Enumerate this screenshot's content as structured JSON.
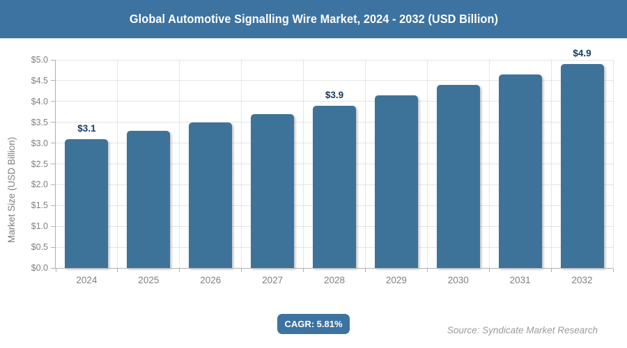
{
  "header": {
    "title": "Global Automotive Signalling Wire Market, 2024 - 2032 (USD Billion)"
  },
  "colors": {
    "accent_blue": "#3D73A0",
    "bar_blue": "#3D7299",
    "data_label_navy": "#17375E",
    "axis_text_gray": "#7F7F7F",
    "gridline_gray": "#E4E4E4",
    "axis_line_gray": "#AFAFAF",
    "source_text_gray": "#9B9B9B"
  },
  "chart_data": {
    "type": "bar",
    "title": "Global Automotive Signalling Wire Market, 2024 - 2032 (USD Billion)",
    "categories": [
      "2024",
      "2025",
      "2026",
      "2027",
      "2028",
      "2029",
      "2030",
      "2031",
      "2032"
    ],
    "values": [
      3.1,
      3.3,
      3.5,
      3.7,
      3.9,
      4.15,
      4.4,
      4.65,
      4.9
    ],
    "data_labels": [
      "$3.1",
      null,
      null,
      null,
      "$3.9",
      null,
      null,
      null,
      "$4.9"
    ],
    "xlabel": "",
    "ylabel": "Market Size (USD Billion)",
    "ylim": [
      0,
      5
    ],
    "ytick_step": 0.5,
    "ytick_labels": [
      "$0.0",
      "$0.5",
      "$1.0",
      "$1.5",
      "$2.0",
      "$2.5",
      "$3.0",
      "$3.5",
      "$4.0",
      "$4.5",
      "$5.0"
    ],
    "grid": true,
    "legend": false
  },
  "footer": {
    "cagr_label": "CAGR: 5.81%",
    "source": "Source: Syndicate Market Research"
  }
}
